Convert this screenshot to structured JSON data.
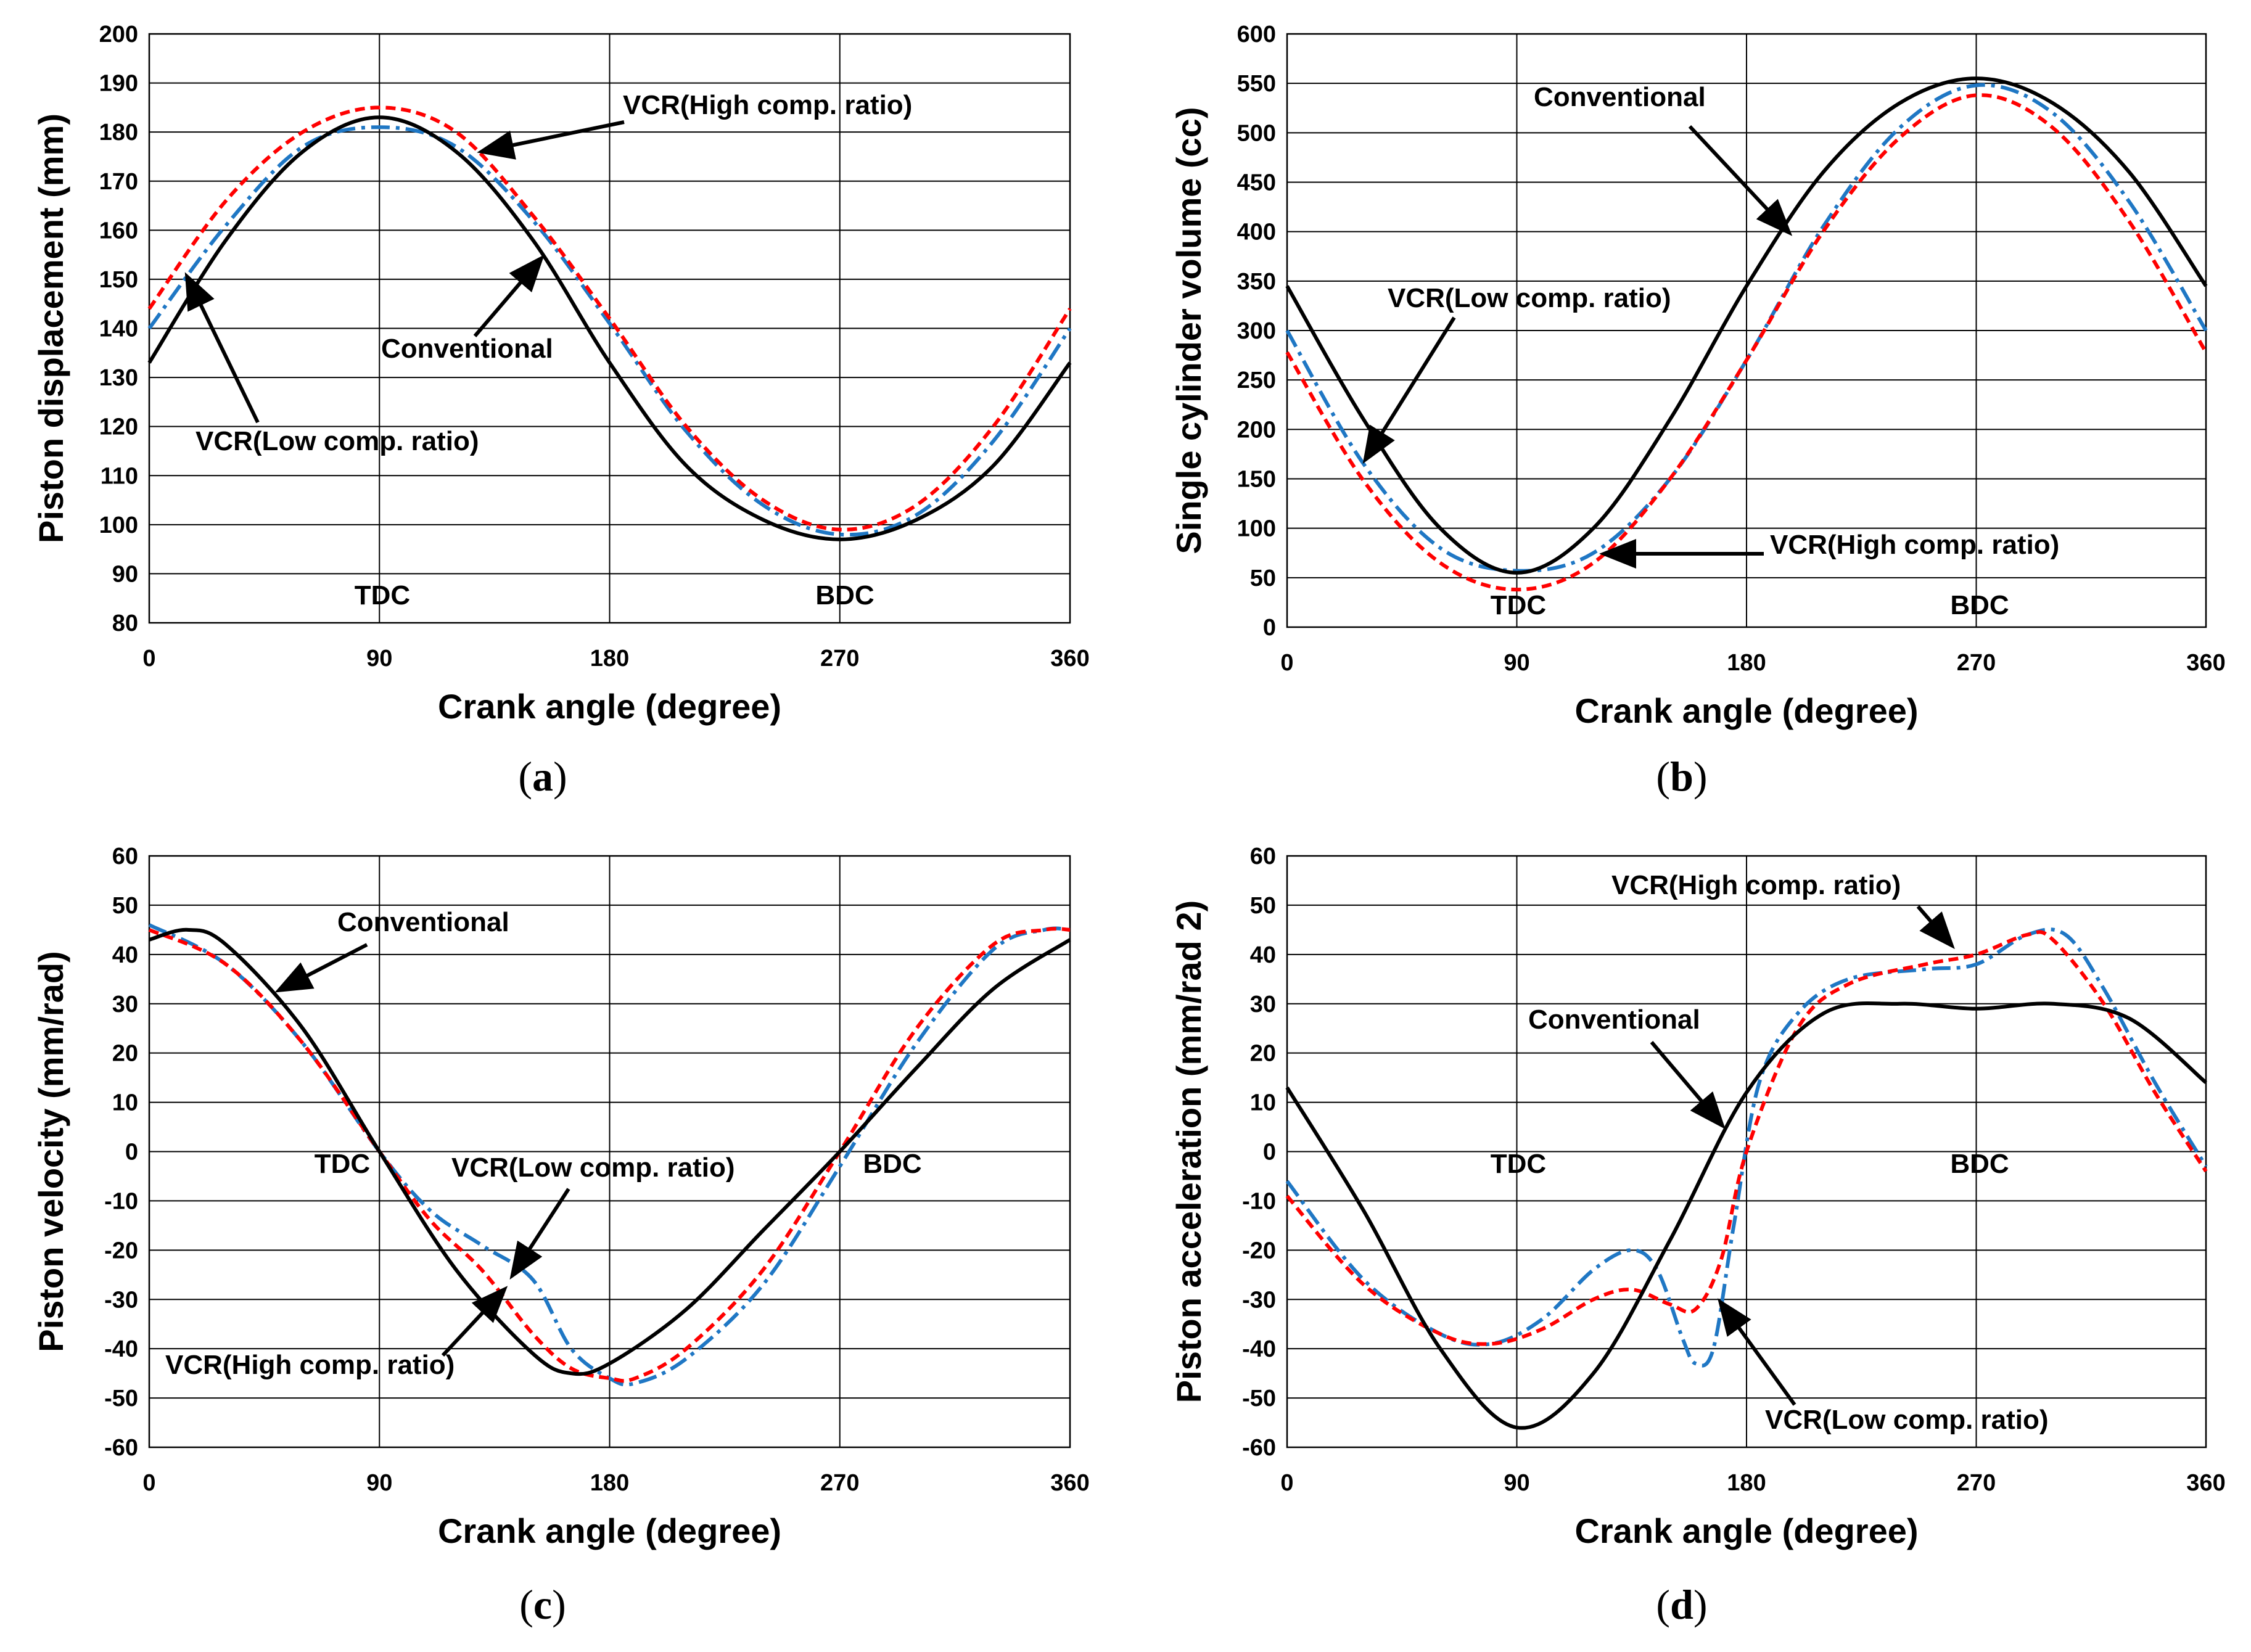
{
  "chart_data": [
    {
      "type": "line",
      "panel": "(a)",
      "panel_letter": "a",
      "xlabel": "Crank angle (degree)",
      "ylabel": "Piston displacement (mm)",
      "xlim": [
        0,
        360
      ],
      "ylim": [
        80,
        200
      ],
      "xticks": [
        "0",
        "90",
        "180",
        "270",
        "360"
      ],
      "yticks": [
        "80",
        "90",
        "100",
        "110",
        "120",
        "130",
        "140",
        "150",
        "160",
        "170",
        "180",
        "190",
        "200"
      ],
      "markers": [
        {
          "label": "TDC",
          "x": 90
        },
        {
          "label": "BDC",
          "x": 270
        }
      ],
      "series": [
        {
          "name": "Conventional",
          "color": "#000000",
          "style": "solid",
          "x": [
            0,
            30,
            60,
            90,
            120,
            150,
            180,
            210,
            240,
            270,
            300,
            330,
            360
          ],
          "y": [
            133,
            158,
            176,
            183,
            176,
            158,
            133,
            112,
            101,
            97,
            101,
            112,
            133
          ]
        },
        {
          "name": "VCR(High comp. ratio)",
          "color": "#ff0000",
          "style": "dashed",
          "x": [
            0,
            30,
            60,
            90,
            120,
            150,
            180,
            210,
            240,
            270,
            300,
            330,
            360
          ],
          "y": [
            144,
            166,
            180,
            185,
            180,
            163,
            142,
            120,
            105,
            99,
            104,
            120,
            144
          ]
        },
        {
          "name": "VCR(Low comp. ratio)",
          "color": "#1f77c4",
          "style": "dashdot",
          "x": [
            0,
            30,
            60,
            90,
            120,
            150,
            180,
            210,
            240,
            270,
            300,
            330,
            360
          ],
          "y": [
            140,
            161,
            177,
            181,
            177,
            162,
            141,
            119,
            104,
            98,
            102,
            117,
            140
          ]
        }
      ],
      "annotations": [
        {
          "text": "VCR(High comp. ratio)"
        },
        {
          "text": "Conventional"
        },
        {
          "text": "VCR(Low comp. ratio)"
        }
      ]
    },
    {
      "type": "line",
      "panel": "(b)",
      "panel_letter": "b",
      "xlabel": "Crank angle (degree)",
      "ylabel": "Single cylinder volume (cc)",
      "xlim": [
        0,
        360
      ],
      "ylim": [
        0,
        600
      ],
      "xticks": [
        "0",
        "90",
        "180",
        "270",
        "360"
      ],
      "yticks": [
        "0",
        "50",
        "100",
        "150",
        "200",
        "250",
        "300",
        "350",
        "400",
        "450",
        "500",
        "550",
        "600"
      ],
      "markers": [
        {
          "label": "TDC",
          "x": 90
        },
        {
          "label": "BDC",
          "x": 270
        }
      ],
      "series": [
        {
          "name": "Conventional",
          "color": "#000000",
          "style": "solid",
          "x": [
            0,
            30,
            60,
            90,
            120,
            150,
            180,
            210,
            240,
            270,
            300,
            330,
            360
          ],
          "y": [
            345,
            210,
            100,
            55,
            100,
            210,
            345,
            460,
            530,
            555,
            530,
            460,
            345
          ]
        },
        {
          "name": "VCR(High comp. ratio)",
          "color": "#ff0000",
          "style": "dashed",
          "x": [
            0,
            30,
            60,
            90,
            120,
            150,
            180,
            210,
            240,
            270,
            300,
            330,
            360
          ],
          "y": [
            278,
            148,
            65,
            38,
            65,
            150,
            270,
            400,
            495,
            538,
            505,
            410,
            278
          ]
        },
        {
          "name": "VCR(Low comp. ratio)",
          "color": "#1f77c4",
          "style": "dashdot",
          "x": [
            0,
            30,
            60,
            90,
            120,
            150,
            180,
            210,
            240,
            270,
            300,
            330,
            360
          ],
          "y": [
            300,
            165,
            80,
            57,
            75,
            150,
            270,
            405,
            505,
            548,
            520,
            430,
            300
          ]
        }
      ],
      "annotations": [
        {
          "text": "Conventional"
        },
        {
          "text": "VCR(Low comp. ratio)"
        },
        {
          "text": "VCR(High comp. ratio)"
        }
      ]
    },
    {
      "type": "line",
      "panel": "(c)",
      "panel_letter": "c",
      "xlabel": "Crank angle (degree)",
      "ylabel": "Piston velocity (mm/rad)",
      "xlim": [
        0,
        360
      ],
      "ylim": [
        -60,
        60
      ],
      "xticks": [
        "0",
        "90",
        "180",
        "270",
        "360"
      ],
      "yticks": [
        "-60",
        "-50",
        "-40",
        "-30",
        "-20",
        "-10",
        "0",
        "10",
        "20",
        "30",
        "40",
        "50",
        "60"
      ],
      "markers": [
        {
          "label": "TDC",
          "x": 90
        },
        {
          "label": "BDC",
          "x": 270
        }
      ],
      "series": [
        {
          "name": "Conventional",
          "color": "#000000",
          "style": "solid",
          "x": [
            0,
            15,
            30,
            60,
            90,
            120,
            150,
            165,
            180,
            210,
            240,
            270,
            300,
            330,
            360
          ],
          "y": [
            43,
            45,
            42,
            25,
            0,
            -24,
            -41,
            -45,
            -43,
            -32,
            -16,
            0,
            17,
            33,
            43
          ]
        },
        {
          "name": "VCR(High comp. ratio)",
          "color": "#ff0000",
          "style": "dashed",
          "x": [
            0,
            30,
            60,
            90,
            110,
            130,
            150,
            165,
            180,
            190,
            210,
            240,
            270,
            300,
            330,
            350,
            360
          ],
          "y": [
            45,
            38,
            22,
            0,
            -14,
            -24,
            -37,
            -44,
            -46,
            -46,
            -40,
            -24,
            0,
            25,
            42,
            45,
            45
          ]
        },
        {
          "name": "VCR(Low comp. ratio)",
          "color": "#1f77c4",
          "style": "dashdot",
          "x": [
            0,
            30,
            60,
            90,
            110,
            130,
            150,
            165,
            180,
            190,
            210,
            240,
            270,
            300,
            330,
            350,
            360
          ],
          "y": [
            46,
            38,
            22,
            0,
            -12,
            -19,
            -26,
            -40,
            -46,
            -47,
            -42,
            -27,
            -3,
            22,
            41,
            45,
            45
          ]
        }
      ],
      "annotations": [
        {
          "text": "Conventional"
        },
        {
          "text": "VCR(Low comp. ratio)"
        },
        {
          "text": "VCR(High comp. ratio)"
        }
      ]
    },
    {
      "type": "line",
      "panel": "(d)",
      "panel_letter": "d",
      "xlabel": "Crank angle (degree)",
      "ylabel": "Piston acceleration (mm/rad 2)",
      "xlim": [
        0,
        360
      ],
      "ylim": [
        -60,
        60
      ],
      "xticks": [
        "0",
        "90",
        "180",
        "270",
        "360"
      ],
      "yticks": [
        "-60",
        "-50",
        "-40",
        "-30",
        "-20",
        "-10",
        "0",
        "10",
        "20",
        "30",
        "40",
        "50",
        "60"
      ],
      "markers": [
        {
          "label": "TDC",
          "x": 90
        },
        {
          "label": "BDC",
          "x": 270
        }
      ],
      "series": [
        {
          "name": "Conventional",
          "color": "#000000",
          "style": "solid",
          "x": [
            0,
            30,
            60,
            90,
            120,
            150,
            180,
            210,
            240,
            270,
            300,
            330,
            360
          ],
          "y": [
            13,
            -12,
            -40,
            -56,
            -45,
            -18,
            12,
            28,
            30,
            29,
            30,
            27,
            14
          ]
        },
        {
          "name": "VCR(High comp. ratio)",
          "color": "#ff0000",
          "style": "dashed",
          "x": [
            0,
            30,
            60,
            80,
            100,
            120,
            135,
            150,
            160,
            170,
            180,
            200,
            220,
            250,
            270,
            290,
            300,
            320,
            340,
            360
          ],
          "y": [
            -9,
            -27,
            -37,
            -39,
            -36,
            -30,
            -28,
            -31,
            -32,
            -22,
            0,
            25,
            34,
            38,
            40,
            44,
            43,
            30,
            12,
            -4
          ]
        },
        {
          "name": "VCR(Low comp. ratio)",
          "color": "#1f77c4",
          "style": "dashdot",
          "x": [
            0,
            30,
            60,
            80,
            100,
            120,
            135,
            145,
            155,
            160,
            167,
            175,
            185,
            200,
            220,
            250,
            270,
            290,
            305,
            320,
            340,
            360
          ],
          "y": [
            -6,
            -26,
            -37,
            -39,
            -34,
            -24,
            -20,
            -24,
            -38,
            -43,
            -40,
            -15,
            14,
            28,
            35,
            37,
            38,
            44,
            44,
            33,
            14,
            -3
          ]
        }
      ],
      "annotations": [
        {
          "text": "VCR(High comp. ratio)"
        },
        {
          "text": "Conventional"
        },
        {
          "text": "VCR(Low comp. ratio)"
        }
      ]
    }
  ]
}
